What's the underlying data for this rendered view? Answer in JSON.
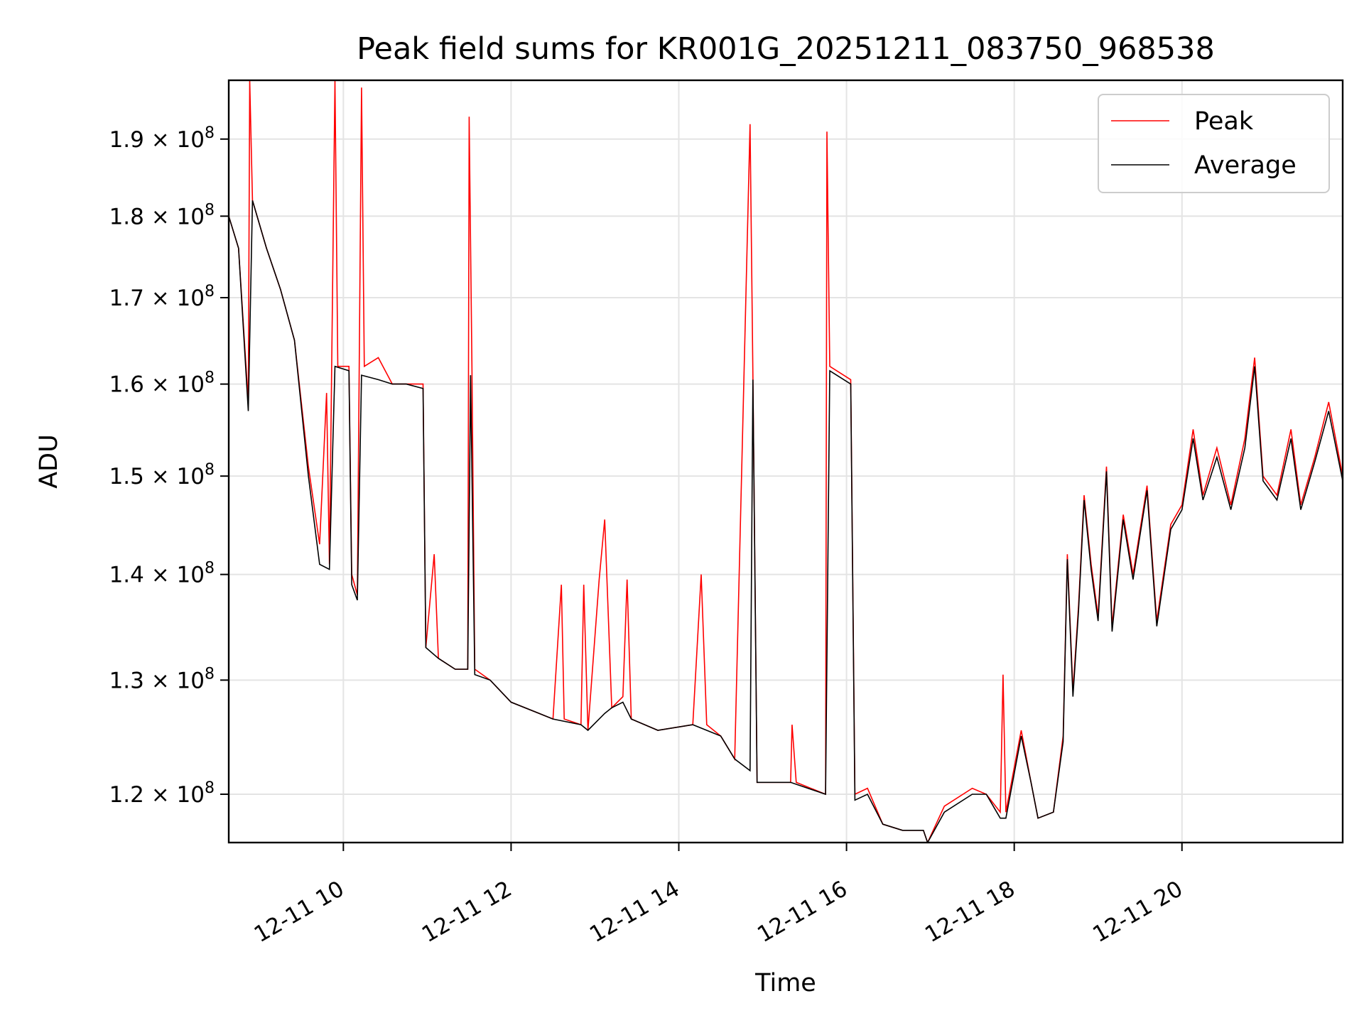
{
  "chart_data": {
    "type": "line",
    "title": "Peak field sums for KR001G_20251211_083750_968538",
    "xlabel": "Time",
    "ylabel": "ADU",
    "x_time_format": "MM-DD HH",
    "xlim": [
      "2025-12-11T08:38",
      "2025-12-11T21:55"
    ],
    "ylim": [
      116000000,
      198000000
    ],
    "y_scale": "log",
    "x_ticks": [
      {
        "time": "2025-12-11T10:00",
        "label": "12-11 10"
      },
      {
        "time": "2025-12-11T12:00",
        "label": "12-11 12"
      },
      {
        "time": "2025-12-11T14:00",
        "label": "12-11 14"
      },
      {
        "time": "2025-12-11T16:00",
        "label": "12-11 16"
      },
      {
        "time": "2025-12-11T18:00",
        "label": "12-11 18"
      },
      {
        "time": "2025-12-11T20:00",
        "label": "12-11 20"
      }
    ],
    "y_ticks": [
      {
        "value": 120000000,
        "mantissa": "1.2",
        "exp": "8"
      },
      {
        "value": 130000000,
        "mantissa": "1.3",
        "exp": "8"
      },
      {
        "value": 140000000,
        "mantissa": "1.4",
        "exp": "8"
      },
      {
        "value": 150000000,
        "mantissa": "1.5",
        "exp": "8"
      },
      {
        "value": 160000000,
        "mantissa": "1.6",
        "exp": "8"
      },
      {
        "value": 170000000,
        "mantissa": "1.7",
        "exp": "8"
      },
      {
        "value": 180000000,
        "mantissa": "1.8",
        "exp": "8"
      },
      {
        "value": 190000000,
        "mantissa": "1.9",
        "exp": "8"
      }
    ],
    "grid": true,
    "legend": "top-right",
    "series": [
      {
        "name": "Peak",
        "color": "#ff0000",
        "points": [
          [
            "2025-12-11T08:38",
            180000000
          ],
          [
            "2025-12-11T08:45",
            176000000
          ],
          [
            "2025-12-11T08:52",
            158000000
          ],
          [
            "2025-12-11T08:53",
            198000000
          ],
          [
            "2025-12-11T08:55",
            182000000
          ],
          [
            "2025-12-11T09:05",
            176000000
          ],
          [
            "2025-12-11T09:15",
            171000000
          ],
          [
            "2025-12-11T09:25",
            165000000
          ],
          [
            "2025-12-11T09:35",
            151000000
          ],
          [
            "2025-12-11T09:43",
            143000000
          ],
          [
            "2025-12-11T09:48",
            159000000
          ],
          [
            "2025-12-11T09:50",
            141000000
          ],
          [
            "2025-12-11T09:54",
            198000000
          ],
          [
            "2025-12-11T09:56",
            162000000
          ],
          [
            "2025-12-11T10:04",
            162000000
          ],
          [
            "2025-12-11T10:06",
            140000000
          ],
          [
            "2025-12-11T10:10",
            138000000
          ],
          [
            "2025-12-11T10:13",
            197000000
          ],
          [
            "2025-12-11T10:15",
            162000000
          ],
          [
            "2025-12-11T10:25",
            163000000
          ],
          [
            "2025-12-11T10:35",
            160000000
          ],
          [
            "2025-12-11T10:45",
            160000000
          ],
          [
            "2025-12-11T10:57",
            160000000
          ],
          [
            "2025-12-11T10:59",
            133000000
          ],
          [
            "2025-12-11T11:05",
            142000000
          ],
          [
            "2025-12-11T11:08",
            132000000
          ],
          [
            "2025-12-11T11:20",
            131000000
          ],
          [
            "2025-12-11T11:29",
            131000000
          ],
          [
            "2025-12-11T11:30",
            193000000
          ],
          [
            "2025-12-11T11:32",
            162000000
          ],
          [
            "2025-12-11T11:34",
            131000000
          ],
          [
            "2025-12-11T11:45",
            130000000
          ],
          [
            "2025-12-11T12:00",
            128000000
          ],
          [
            "2025-12-11T12:30",
            126500000
          ],
          [
            "2025-12-11T12:36",
            139000000
          ],
          [
            "2025-12-11T12:38",
            126500000
          ],
          [
            "2025-12-11T12:50",
            126000000
          ],
          [
            "2025-12-11T12:52",
            139000000
          ],
          [
            "2025-12-11T12:55",
            125500000
          ],
          [
            "2025-12-11T13:03",
            139500000
          ],
          [
            "2025-12-11T13:07",
            145500000
          ],
          [
            "2025-12-11T13:12",
            127500000
          ],
          [
            "2025-12-11T13:20",
            128500000
          ],
          [
            "2025-12-11T13:23",
            139500000
          ],
          [
            "2025-12-11T13:26",
            126500000
          ],
          [
            "2025-12-11T13:45",
            125500000
          ],
          [
            "2025-12-11T14:10",
            126000000
          ],
          [
            "2025-12-11T14:16",
            140000000
          ],
          [
            "2025-12-11T14:20",
            126000000
          ],
          [
            "2025-12-11T14:30",
            125000000
          ],
          [
            "2025-12-11T14:40",
            123000000
          ],
          [
            "2025-12-11T14:51",
            192000000
          ],
          [
            "2025-12-11T14:53",
            161000000
          ],
          [
            "2025-12-11T14:56",
            121000000
          ],
          [
            "2025-12-11T15:20",
            121000000
          ],
          [
            "2025-12-11T15:21",
            126000000
          ],
          [
            "2025-12-11T15:24",
            121000000
          ],
          [
            "2025-12-11T15:45",
            120000000
          ],
          [
            "2025-12-11T15:46",
            191000000
          ],
          [
            "2025-12-11T15:48",
            162000000
          ],
          [
            "2025-12-11T16:03",
            160500000
          ],
          [
            "2025-12-11T16:06",
            120000000
          ],
          [
            "2025-12-11T16:15",
            120500000
          ],
          [
            "2025-12-11T16:26",
            117500000
          ],
          [
            "2025-12-11T16:40",
            117000000
          ],
          [
            "2025-12-11T16:55",
            117000000
          ],
          [
            "2025-12-11T16:58",
            116000000
          ],
          [
            "2025-12-11T17:10",
            119000000
          ],
          [
            "2025-12-11T17:30",
            120500000
          ],
          [
            "2025-12-11T17:40",
            120000000
          ],
          [
            "2025-12-11T17:50",
            118500000
          ],
          [
            "2025-12-11T17:52",
            130500000
          ],
          [
            "2025-12-11T17:54",
            118500000
          ],
          [
            "2025-12-11T18:05",
            125500000
          ],
          [
            "2025-12-11T18:12",
            121000000
          ],
          [
            "2025-12-11T18:17",
            118000000
          ],
          [
            "2025-12-11T18:28",
            118500000
          ],
          [
            "2025-12-11T18:35",
            125000000
          ],
          [
            "2025-12-11T18:38",
            142000000
          ],
          [
            "2025-12-11T18:42",
            129000000
          ],
          [
            "2025-12-11T18:46",
            137000000
          ],
          [
            "2025-12-11T18:50",
            148000000
          ],
          [
            "2025-12-11T18:55",
            141000000
          ],
          [
            "2025-12-11T19:00",
            136000000
          ],
          [
            "2025-12-11T19:06",
            151000000
          ],
          [
            "2025-12-11T19:10",
            135000000
          ],
          [
            "2025-12-11T19:18",
            146000000
          ],
          [
            "2025-12-11T19:25",
            140000000
          ],
          [
            "2025-12-11T19:35",
            149000000
          ],
          [
            "2025-12-11T19:42",
            135500000
          ],
          [
            "2025-12-11T19:52",
            145000000
          ],
          [
            "2025-12-11T20:00",
            147000000
          ],
          [
            "2025-12-11T20:08",
            155000000
          ],
          [
            "2025-12-11T20:15",
            148000000
          ],
          [
            "2025-12-11T20:25",
            153000000
          ],
          [
            "2025-12-11T20:35",
            147000000
          ],
          [
            "2025-12-11T20:45",
            154000000
          ],
          [
            "2025-12-11T20:52",
            163000000
          ],
          [
            "2025-12-11T20:58",
            150000000
          ],
          [
            "2025-12-11T21:08",
            148000000
          ],
          [
            "2025-12-11T21:18",
            155000000
          ],
          [
            "2025-12-11T21:25",
            147000000
          ],
          [
            "2025-12-11T21:35",
            152000000
          ],
          [
            "2025-12-11T21:45",
            158000000
          ],
          [
            "2025-12-11T21:55",
            150000000
          ]
        ]
      },
      {
        "name": "Average",
        "color": "#000000",
        "points": [
          [
            "2025-12-11T08:38",
            180000000
          ],
          [
            "2025-12-11T08:45",
            176000000
          ],
          [
            "2025-12-11T08:52",
            157000000
          ],
          [
            "2025-12-11T08:55",
            182000000
          ],
          [
            "2025-12-11T09:05",
            176000000
          ],
          [
            "2025-12-11T09:15",
            171000000
          ],
          [
            "2025-12-11T09:25",
            165000000
          ],
          [
            "2025-12-11T09:35",
            150000000
          ],
          [
            "2025-12-11T09:43",
            141000000
          ],
          [
            "2025-12-11T09:50",
            140500000
          ],
          [
            "2025-12-11T09:54",
            162000000
          ],
          [
            "2025-12-11T10:04",
            161500000
          ],
          [
            "2025-12-11T10:06",
            139000000
          ],
          [
            "2025-12-11T10:10",
            137500000
          ],
          [
            "2025-12-11T10:13",
            161000000
          ],
          [
            "2025-12-11T10:25",
            160500000
          ],
          [
            "2025-12-11T10:35",
            160000000
          ],
          [
            "2025-12-11T10:45",
            160000000
          ],
          [
            "2025-12-11T10:57",
            159500000
          ],
          [
            "2025-12-11T10:59",
            133000000
          ],
          [
            "2025-12-11T11:08",
            132000000
          ],
          [
            "2025-12-11T11:20",
            131000000
          ],
          [
            "2025-12-11T11:29",
            131000000
          ],
          [
            "2025-12-11T11:31",
            161000000
          ],
          [
            "2025-12-11T11:34",
            130500000
          ],
          [
            "2025-12-11T11:45",
            130000000
          ],
          [
            "2025-12-11T12:00",
            128000000
          ],
          [
            "2025-12-11T12:30",
            126500000
          ],
          [
            "2025-12-11T12:50",
            126000000
          ],
          [
            "2025-12-11T12:55",
            125500000
          ],
          [
            "2025-12-11T13:07",
            127000000
          ],
          [
            "2025-12-11T13:12",
            127500000
          ],
          [
            "2025-12-11T13:20",
            128000000
          ],
          [
            "2025-12-11T13:26",
            126500000
          ],
          [
            "2025-12-11T13:45",
            125500000
          ],
          [
            "2025-12-11T14:10",
            126000000
          ],
          [
            "2025-12-11T14:30",
            125000000
          ],
          [
            "2025-12-11T14:40",
            123000000
          ],
          [
            "2025-12-11T14:51",
            122000000
          ],
          [
            "2025-12-11T14:53",
            160500000
          ],
          [
            "2025-12-11T14:56",
            121000000
          ],
          [
            "2025-12-11T15:20",
            121000000
          ],
          [
            "2025-12-11T15:45",
            120000000
          ],
          [
            "2025-12-11T15:48",
            161500000
          ],
          [
            "2025-12-11T16:03",
            160000000
          ],
          [
            "2025-12-11T16:06",
            119500000
          ],
          [
            "2025-12-11T16:15",
            120000000
          ],
          [
            "2025-12-11T16:26",
            117500000
          ],
          [
            "2025-12-11T16:40",
            117000000
          ],
          [
            "2025-12-11T16:55",
            117000000
          ],
          [
            "2025-12-11T16:58",
            116000000
          ],
          [
            "2025-12-11T17:10",
            118500000
          ],
          [
            "2025-12-11T17:30",
            120000000
          ],
          [
            "2025-12-11T17:40",
            120000000
          ],
          [
            "2025-12-11T17:50",
            118000000
          ],
          [
            "2025-12-11T17:54",
            118000000
          ],
          [
            "2025-12-11T18:05",
            125000000
          ],
          [
            "2025-12-11T18:12",
            121000000
          ],
          [
            "2025-12-11T18:17",
            118000000
          ],
          [
            "2025-12-11T18:28",
            118500000
          ],
          [
            "2025-12-11T18:35",
            124500000
          ],
          [
            "2025-12-11T18:38",
            141500000
          ],
          [
            "2025-12-11T18:42",
            128500000
          ],
          [
            "2025-12-11T18:46",
            136500000
          ],
          [
            "2025-12-11T18:50",
            147500000
          ],
          [
            "2025-12-11T18:55",
            140500000
          ],
          [
            "2025-12-11T19:00",
            135500000
          ],
          [
            "2025-12-11T19:06",
            150500000
          ],
          [
            "2025-12-11T19:10",
            134500000
          ],
          [
            "2025-12-11T19:18",
            145500000
          ],
          [
            "2025-12-11T19:25",
            139500000
          ],
          [
            "2025-12-11T19:35",
            148500000
          ],
          [
            "2025-12-11T19:42",
            135000000
          ],
          [
            "2025-12-11T19:52",
            144500000
          ],
          [
            "2025-12-11T20:00",
            146500000
          ],
          [
            "2025-12-11T20:08",
            154000000
          ],
          [
            "2025-12-11T20:15",
            147500000
          ],
          [
            "2025-12-11T20:25",
            152000000
          ],
          [
            "2025-12-11T20:35",
            146500000
          ],
          [
            "2025-12-11T20:45",
            153000000
          ],
          [
            "2025-12-11T20:52",
            162000000
          ],
          [
            "2025-12-11T20:58",
            149500000
          ],
          [
            "2025-12-11T21:08",
            147500000
          ],
          [
            "2025-12-11T21:18",
            154000000
          ],
          [
            "2025-12-11T21:25",
            146500000
          ],
          [
            "2025-12-11T21:35",
            151500000
          ],
          [
            "2025-12-11T21:45",
            157000000
          ],
          [
            "2025-12-11T21:55",
            149500000
          ]
        ]
      }
    ]
  }
}
